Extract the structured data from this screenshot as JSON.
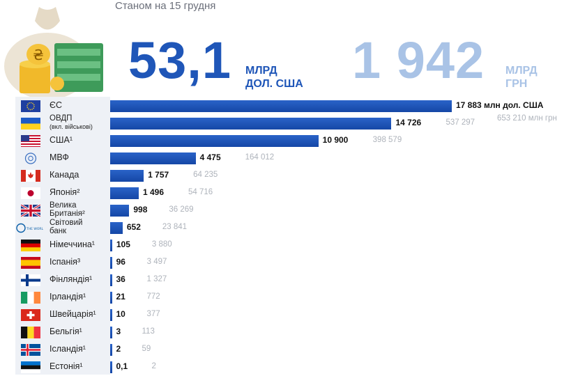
{
  "header": {
    "subtitle": "Станом на 15 грудня",
    "total_usd": "53,1",
    "total_usd_unit_line1": "МЛРД",
    "total_usd_unit_line2": "ДОЛ. США",
    "total_uah": "1 942",
    "total_uah_unit_line1": "МЛРД",
    "total_uah_unit_line2": "ГРН"
  },
  "colors": {
    "bar": "#1f56b8",
    "total_uah": "#a9c3e6",
    "grn_text": "#aeb3bb",
    "label_bg": "#eef1f6"
  },
  "chart_data": {
    "type": "bar",
    "orientation": "horizontal",
    "title": "",
    "unit_label": "млн дол. США",
    "unit_label_uah": "653 210 млн грн",
    "rows": [
      {
        "name": "ЄС",
        "flag": "eu-flag",
        "usd": 17883,
        "usd_label": "17 883",
        "uah_label": ""
      },
      {
        "name_line1": "ОВДП",
        "name_line2": "(вкл. військові)",
        "flag": "ukraine-flag",
        "usd": 14726,
        "usd_label": "14 726",
        "uah_label": "537 297"
      },
      {
        "name": "США¹",
        "flag": "usa-flag",
        "usd": 10900,
        "usd_label": "10 900",
        "uah_label": "398 579"
      },
      {
        "name": "МВФ",
        "flag": "imf-logo",
        "usd": 4475,
        "usd_label": "4 475",
        "uah_label": "164 012"
      },
      {
        "name": "Канада",
        "flag": "canada-flag",
        "usd": 1757,
        "usd_label": "1 757",
        "uah_label": "64 235"
      },
      {
        "name": "Японія²",
        "flag": "japan-flag",
        "usd": 1496,
        "usd_label": "1 496",
        "uah_label": "54 716"
      },
      {
        "name_line1": "Велика",
        "name_line2": "Британія²",
        "flag": "uk-flag",
        "usd": 998,
        "usd_label": "998",
        "uah_label": "36 269"
      },
      {
        "name_line1": "Світовий",
        "name_line2": "банк",
        "flag": "world-bank-logo",
        "usd": 652,
        "usd_label": "652",
        "uah_label": "23 841"
      },
      {
        "name": "Німеччина¹",
        "flag": "germany-flag",
        "usd": 105,
        "usd_label": "105",
        "uah_label": "3 880"
      },
      {
        "name": "Іспанія³",
        "flag": "spain-flag",
        "usd": 96,
        "usd_label": "96",
        "uah_label": "3 497"
      },
      {
        "name": "Фінляндія¹",
        "flag": "finland-flag",
        "usd": 36,
        "usd_label": "36",
        "uah_label": "1 327"
      },
      {
        "name": "Ірландія¹",
        "flag": "ireland-flag",
        "usd": 21,
        "usd_label": "21",
        "uah_label": "772"
      },
      {
        "name": "Швейцарія¹",
        "flag": "switzerland-flag",
        "usd": 10,
        "usd_label": "10",
        "uah_label": "377"
      },
      {
        "name": "Бельгія¹",
        "flag": "belgium-flag",
        "usd": 3,
        "usd_label": "3",
        "uah_label": "113"
      },
      {
        "name": "Ісландія¹",
        "flag": "iceland-flag",
        "usd": 2,
        "usd_label": "2",
        "uah_label": "59"
      },
      {
        "name": "Естонія¹",
        "flag": "estonia-flag",
        "usd": 0.1,
        "usd_label": "0,1",
        "uah_label": "2"
      }
    ]
  }
}
